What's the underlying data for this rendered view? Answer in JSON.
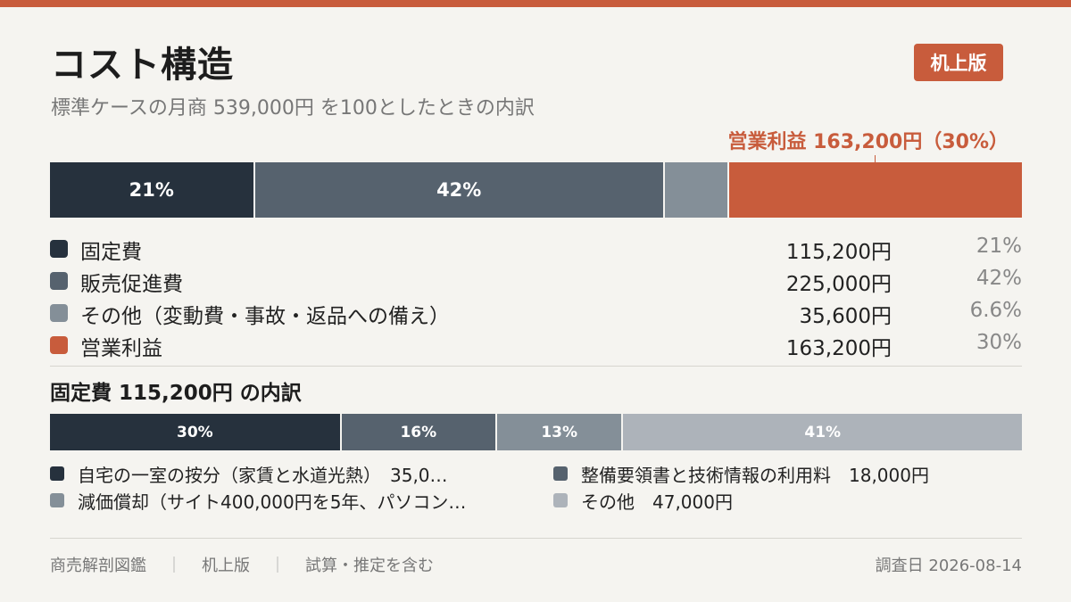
{
  "header": {
    "title": "コスト構造",
    "subtitle": "標準ケースの月商 539,000円 を100としたときの内訳",
    "badge": "机上版",
    "callout": "営業利益 163,200円（30%）"
  },
  "chart_data": [
    {
      "type": "bar",
      "orientation": "horizontal-stacked-100",
      "total": 539000,
      "series": [
        {
          "name": "固定費",
          "amount": 115200,
          "amount_label": "115,200円",
          "percent": 21,
          "percent_label": "21%",
          "bar_label": "21%",
          "color": "#26313d"
        },
        {
          "name": "販売促進費",
          "amount": 225000,
          "amount_label": "225,000円",
          "percent": 42,
          "percent_label": "42%",
          "bar_label": "42%",
          "color": "#56626e"
        },
        {
          "name": "その他（変動費・事故・返品への備え）",
          "amount": 35600,
          "amount_label": "35,600円",
          "percent": 6.6,
          "percent_label": "6.6%",
          "bar_label": "",
          "color": "#848f98"
        },
        {
          "name": "営業利益",
          "amount": 163200,
          "amount_label": "163,200円",
          "percent": 30,
          "percent_label": "30%",
          "bar_label": "",
          "color": "#c85c3c"
        }
      ]
    },
    {
      "type": "bar",
      "orientation": "horizontal-stacked-100",
      "title": "固定費 115,200円 の内訳",
      "total": 115200,
      "series": [
        {
          "name": "自宅の一室の按分（家賃と水道光熱）",
          "legend_label": "自宅の一室の按分（家賃と水道光熱）　35,0…",
          "percent": 30,
          "bar_label": "30%",
          "color": "#26313d"
        },
        {
          "name": "整備要領書と技術情報の利用料",
          "legend_label": "整備要領書と技術情報の利用料　18,000円",
          "amount": 18000,
          "percent": 16,
          "bar_label": "16%",
          "color": "#56626e"
        },
        {
          "name": "減価償却",
          "legend_label": "減価償却（サイト400,000円を5年、パソコン…",
          "percent": 13,
          "bar_label": "13%",
          "color": "#848f98"
        },
        {
          "name": "その他",
          "legend_label": "その他　47,000円",
          "amount": 47000,
          "percent": 41,
          "bar_label": "41%",
          "color": "#adb3ba"
        }
      ]
    }
  ],
  "footer": {
    "items": [
      "商売解剖図鑑",
      "机上版",
      "試算・推定を含む"
    ],
    "separator": "｜",
    "date": "調査日 2026-08-14"
  }
}
